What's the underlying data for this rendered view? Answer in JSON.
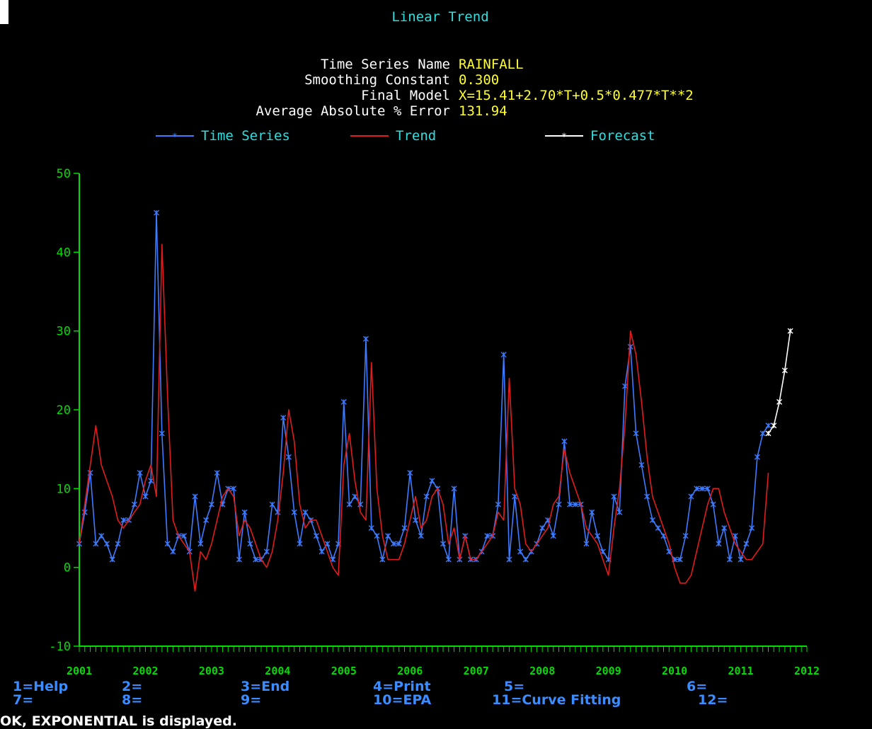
{
  "chart_data": {
    "type": "line",
    "title": "Linear Trend",
    "info": [
      {
        "label": "Time Series Name",
        "value": "RAINFALL"
      },
      {
        "label": "Smoothing Constant",
        "value": "0.300"
      },
      {
        "label": "Final Model",
        "value": "X=15.41+2.70*T+0.5*0.477*T**2"
      },
      {
        "label": "Average Absolute % Error",
        "value": "131.94"
      }
    ],
    "legend": [
      "Time Series",
      "Trend",
      "Forecast"
    ],
    "y_ticks": [
      "50",
      "40",
      "30",
      "20",
      "10",
      "0",
      "-10"
    ],
    "ylim": [
      -10,
      50
    ],
    "x_ticks": [
      "2001",
      "2002",
      "2003",
      "2004",
      "2005",
      "2006",
      "2007",
      "2008",
      "2009",
      "2010",
      "2011",
      "2012"
    ],
    "xlim": [
      0,
      132
    ],
    "series": [
      {
        "name": "Time Series",
        "color": "#3d7bff",
        "start": 0,
        "values": [
          3,
          7,
          12,
          3,
          4,
          3,
          1,
          3,
          6,
          6,
          8,
          12,
          9,
          11,
          45,
          17,
          3,
          2,
          4,
          4,
          2,
          9,
          3,
          6,
          8,
          12,
          8,
          10,
          10,
          1,
          7,
          3,
          1,
          1,
          2,
          8,
          7,
          19,
          14,
          7,
          3,
          7,
          6,
          4,
          2,
          3,
          1,
          3,
          21,
          8,
          9,
          8,
          29,
          5,
          4,
          1,
          4,
          3,
          3,
          5,
          12,
          6,
          4,
          9,
          11,
          10,
          3,
          1,
          10,
          1,
          4,
          1,
          1,
          2,
          4,
          4,
          8,
          27,
          1,
          9,
          2,
          1,
          2,
          3,
          5,
          6,
          4,
          8,
          16,
          8,
          8,
          8,
          3,
          7,
          4,
          2,
          1,
          9,
          7,
          23,
          28,
          17,
          13,
          9,
          6,
          5,
          4,
          2,
          1,
          1,
          4,
          9,
          10,
          10,
          10,
          8,
          3,
          5,
          1,
          4,
          1,
          3,
          5,
          14,
          17,
          18
        ]
      },
      {
        "name": "Trend",
        "color": "#e01c1c",
        "start": 0,
        "values": [
          3,
          8,
          13,
          18,
          13,
          11,
          9,
          6,
          5,
          6,
          7,
          8,
          11,
          13,
          9,
          41,
          22,
          6,
          4,
          3,
          2,
          -3,
          2,
          1,
          3,
          6,
          9,
          10,
          9,
          4,
          6,
          5,
          3,
          1,
          0,
          2,
          6,
          12,
          20,
          16,
          8,
          5,
          6,
          6,
          4,
          2,
          0,
          -1,
          13,
          17,
          11,
          7,
          6,
          26,
          10,
          4,
          1,
          1,
          1,
          3,
          6,
          9,
          5,
          6,
          9,
          10,
          8,
          3,
          5,
          1,
          4,
          1,
          1,
          2,
          3,
          4,
          7,
          6,
          24,
          10,
          8,
          3,
          2,
          3,
          4,
          5,
          8,
          9,
          15,
          12,
          10,
          8,
          5,
          4,
          3,
          1,
          -1,
          5,
          10,
          18,
          30,
          27,
          21,
          14,
          9,
          7,
          5,
          3,
          0,
          -2,
          -2,
          -1,
          2,
          5,
          8,
          10,
          10,
          7,
          5,
          3,
          2,
          1,
          1,
          2,
          3,
          12
        ]
      },
      {
        "name": "Forecast",
        "color": "#ffffff",
        "start": 125,
        "values": [
          17,
          18,
          21,
          25,
          30
        ]
      }
    ]
  },
  "fkeys": [
    {
      "label": "1=Help"
    },
    {
      "label": "2="
    },
    {
      "label": "3=End"
    },
    {
      "label": "4=Print"
    },
    {
      "label": "5="
    },
    {
      "label": "6="
    },
    {
      "label": "7="
    },
    {
      "label": "8="
    },
    {
      "label": "9="
    },
    {
      "label": "10=EPA"
    },
    {
      "label": "11=Curve Fitting"
    },
    {
      "label": "12="
    }
  ],
  "status": "OK, EXPONENTIAL is displayed.",
  "colors": {
    "info_label": "#ffffff",
    "info_value": "#ffff33",
    "cyan": "#33dddd",
    "axis": "#00dd00",
    "fkey": "#3a8cff"
  }
}
